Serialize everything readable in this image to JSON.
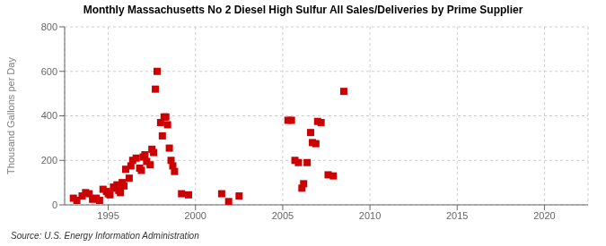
{
  "chart_data": {
    "type": "scatter",
    "title": "Monthly Massachusetts No 2 Diesel High Sulfur All Sales/Deliveries by Prime Supplier",
    "ylabel": "Thousand Gallons per Day",
    "annotation": "Source: U.S. Energy Information Administration",
    "color": "#cc0000",
    "marker": "square",
    "grid": true,
    "xlim": [
      1992.5,
      2022.5
    ],
    "xticks": [
      1995,
      2000,
      2005,
      2010,
      2015,
      2020
    ],
    "ylim": [
      0,
      800
    ],
    "yticks": [
      0,
      200,
      400,
      600,
      800
    ],
    "x": [
      1993.0,
      1993.2,
      1993.5,
      1993.7,
      1993.9,
      1994.1,
      1994.3,
      1994.5,
      1994.7,
      1994.9,
      1995.0,
      1995.1,
      1995.3,
      1995.4,
      1995.5,
      1995.6,
      1995.7,
      1995.8,
      1995.9,
      1996.0,
      1996.2,
      1996.3,
      1996.4,
      1996.6,
      1996.8,
      1996.9,
      1997.0,
      1997.1,
      1997.2,
      1997.4,
      1997.5,
      1997.6,
      1997.7,
      1997.8,
      1998.0,
      1998.1,
      1998.2,
      1998.3,
      1998.4,
      1998.5,
      1998.6,
      1998.7,
      1998.8,
      1999.2,
      1999.6,
      2001.5,
      2001.9,
      2002.5,
      2005.3,
      2005.5,
      2005.7,
      2005.9,
      2006.1,
      2006.2,
      2006.4,
      2006.6,
      2006.7,
      2006.9,
      2007.0,
      2007.2,
      2007.6,
      2007.9,
      2008.5
    ],
    "values": [
      30,
      20,
      40,
      55,
      50,
      25,
      30,
      20,
      70,
      60,
      50,
      45,
      80,
      75,
      90,
      65,
      55,
      100,
      85,
      160,
      120,
      175,
      200,
      210,
      165,
      155,
      215,
      225,
      195,
      180,
      250,
      235,
      520,
      600,
      370,
      310,
      395,
      395,
      360,
      255,
      200,
      175,
      150,
      50,
      45,
      50,
      15,
      40,
      380,
      380,
      200,
      190,
      75,
      95,
      190,
      325,
      280,
      275,
      375,
      370,
      135,
      130,
      510
    ]
  }
}
